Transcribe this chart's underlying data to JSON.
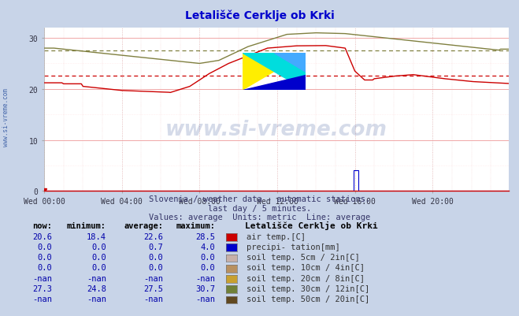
{
  "title": "Letališče Cerklje ob Krki",
  "subtitle1": "Slovenia / weather data - automatic stations.",
  "subtitle2": "last day / 5 minutes.",
  "subtitle3": "Values: average  Units: metric  Line: average",
  "station_name": "Letališče Cerklje ob Krki",
  "bg_color": "#c8d4e8",
  "plot_bg_color": "#ffffff",
  "xlim": [
    0,
    287
  ],
  "ylim": [
    0,
    32
  ],
  "yticks": [
    0,
    10,
    20,
    30
  ],
  "xtick_labels": [
    "Wed 00:00",
    "Wed 04:00",
    "Wed 08:00",
    "Wed 12:00",
    "Wed 16:00",
    "Wed 20:00"
  ],
  "xtick_positions": [
    0,
    48,
    96,
    144,
    192,
    240
  ],
  "air_temp_color": "#cc0000",
  "air_temp_avg": 22.6,
  "soil30_color": "#808040",
  "soil30_avg": 27.5,
  "precip_color": "#0000cc",
  "watermark_text": "www.si-vreme.com",
  "watermark_color": "#1a3a8a",
  "side_text_color": "#4466aa",
  "title_color": "#0000cc",
  "subtitle_color": "#333366",
  "table_val_color": "#0000aa",
  "table_label_color": "#333333",
  "table_header_color": "#000000",
  "table_rows": [
    [
      "20.6",
      "18.4",
      "22.6",
      "28.5",
      "air temp.[C]",
      "#cc0000"
    ],
    [
      "0.0",
      "0.0",
      "0.7",
      "4.0",
      "precipi- tation[mm]",
      "#0000cc"
    ],
    [
      "0.0",
      "0.0",
      "0.0",
      "0.0",
      "soil temp. 5cm / 2in[C]",
      "#c8b0a8"
    ],
    [
      "0.0",
      "0.0",
      "0.0",
      "0.0",
      "soil temp. 10cm / 4in[C]",
      "#b89060"
    ],
    [
      "-nan",
      "-nan",
      "-nan",
      "-nan",
      "soil temp. 20cm / 8in[C]",
      "#c8a030"
    ],
    [
      "27.3",
      "24.8",
      "27.5",
      "30.7",
      "soil temp. 30cm / 12in[C]",
      "#708038"
    ],
    [
      "-nan",
      "-nan",
      "-nan",
      "-nan",
      "soil temp. 50cm / 20in[C]",
      "#604820"
    ]
  ]
}
